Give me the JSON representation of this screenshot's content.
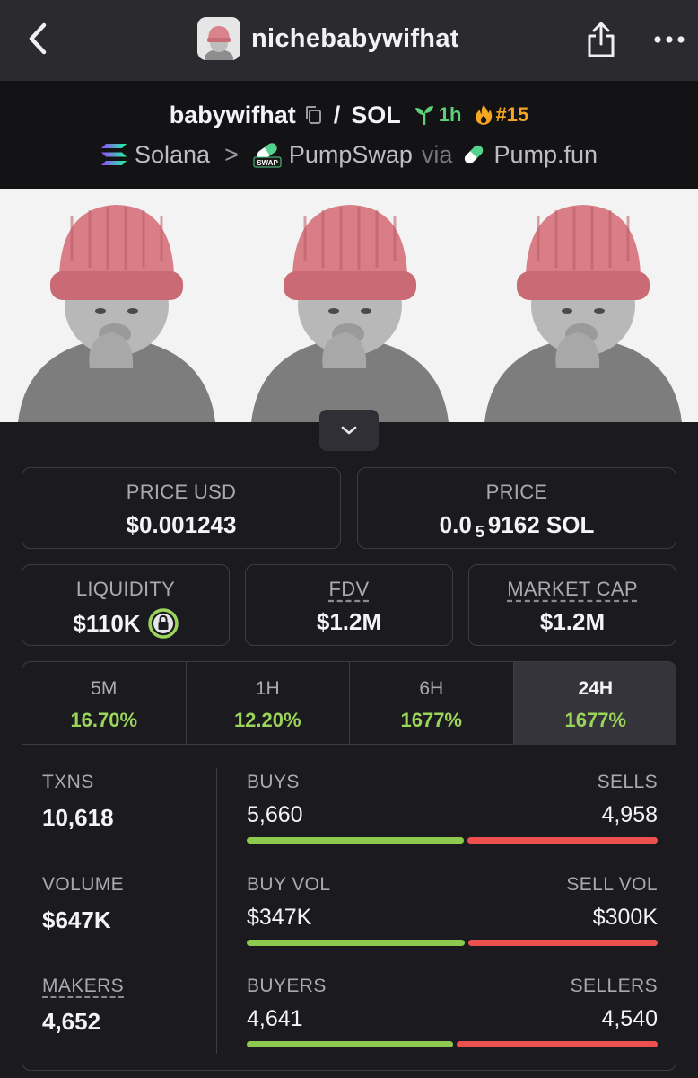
{
  "nav": {
    "title": "nichebabywifhat",
    "back_icon": "chevron-left-icon",
    "share_icon": "share-icon",
    "more_icon": "ellipsis-icon"
  },
  "pair": {
    "base": "babywifhat",
    "sep": "/",
    "quote": "SOL",
    "age": "1h",
    "rank": "#15",
    "chain": "Solana",
    "chevron": ">",
    "dex": "PumpSwap",
    "via": "via",
    "launchpad": "Pump.fun",
    "dex_badge": "SWAP"
  },
  "stats": {
    "price_usd": {
      "label": "PRICE USD",
      "value": "$0.001243"
    },
    "price": {
      "label": "PRICE",
      "prefix": "0.0",
      "subscript": "5",
      "suffix": "9162 SOL"
    },
    "liquidity": {
      "label": "LIQUIDITY",
      "value": "$110K"
    },
    "fdv": {
      "label": "FDV",
      "value": "$1.2M"
    },
    "market_cap": {
      "label": "MARKET CAP",
      "value": "$1.2M"
    }
  },
  "tabs": [
    {
      "label": "5M",
      "pct": "16.70%"
    },
    {
      "label": "1H",
      "pct": "12.20%"
    },
    {
      "label": "6H",
      "pct": "1677%"
    },
    {
      "label": "24H",
      "pct": "1677%"
    }
  ],
  "active_tab": "24H",
  "activity": {
    "txns": {
      "label": "TXNS",
      "value": "10,618"
    },
    "volume": {
      "label": "VOLUME",
      "value": "$647K"
    },
    "makers": {
      "label": "MAKERS",
      "value": "4,652"
    },
    "buys_sells": {
      "left_label": "BUYS",
      "right_label": "SELLS",
      "left_value": "5,660",
      "right_value": "4,958",
      "left_share": 0.533
    },
    "vol_split": {
      "left_label": "BUY VOL",
      "right_label": "SELL VOL",
      "left_value": "$347K",
      "right_value": "$300K",
      "left_share": 0.536
    },
    "buyers_sellers": {
      "left_label": "BUYERS",
      "right_label": "SELLERS",
      "left_value": "4,641",
      "right_value": "4,540",
      "left_share": 0.506
    }
  },
  "colors": {
    "positive": "#9bd45a",
    "buy_bar": "#8cc94e",
    "sell_bar": "#ee5050",
    "age_green": "#5fd07a",
    "rank_orange": "#f5a524"
  }
}
